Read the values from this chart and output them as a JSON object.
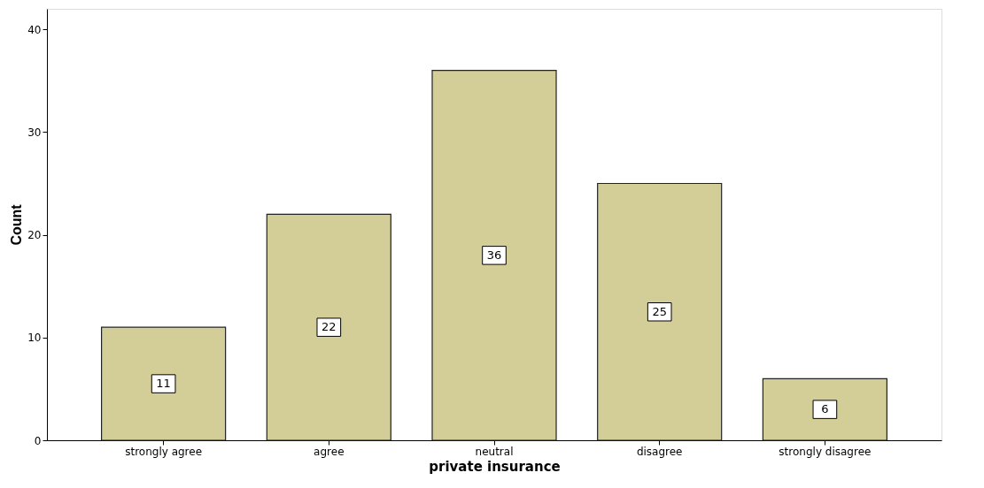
{
  "chart_data": {
    "type": "bar",
    "xlabel": "private insurance",
    "ylabel": "Count",
    "categories": [
      "strongly agree",
      "agree",
      "neutral",
      "disagree",
      "strongly disagree"
    ],
    "values": [
      11,
      22,
      36,
      25,
      6
    ],
    "color": "#d3cd98",
    "ylim": [
      0,
      42
    ],
    "yticks": [
      0,
      10,
      20,
      30,
      40
    ],
    "grid": false,
    "data_labels": true
  }
}
